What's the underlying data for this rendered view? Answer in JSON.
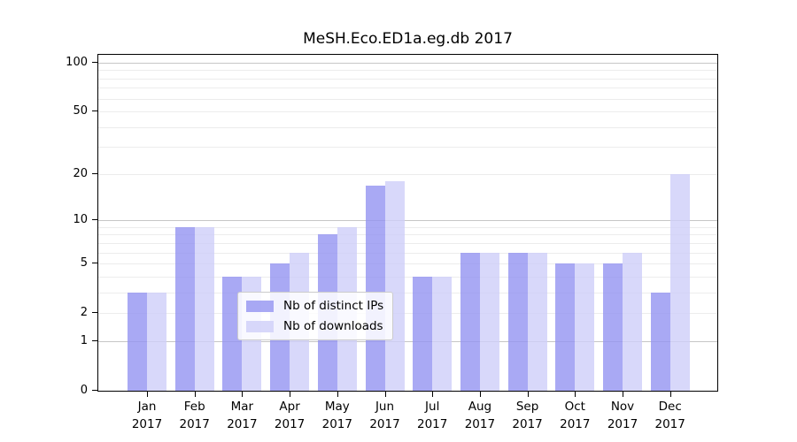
{
  "title": "MeSH.Eco.ED1a.eg.db 2017",
  "colors": {
    "ips_bar": "rgba(148,148,241,0.8)",
    "downloads_bar": "rgba(206,206,249,0.8)",
    "grid_major": "#c6c6c6",
    "grid_minor": "#ececec",
    "spine": "#000000"
  },
  "legend": {
    "items": [
      {
        "label": "Nb of distinct IPs",
        "series": "ips"
      },
      {
        "label": "Nb of downloads",
        "series": "downloads"
      }
    ]
  },
  "chart_data": {
    "type": "bar",
    "title": "MeSH.Eco.ED1a.eg.db 2017",
    "categories": [
      "Jan 2017",
      "Feb 2017",
      "Mar 2017",
      "Apr 2017",
      "May 2017",
      "Jun 2017",
      "Jul 2017",
      "Aug 2017",
      "Sep 2017",
      "Oct 2017",
      "Nov 2017",
      "Dec 2017"
    ],
    "months": [
      "Jan",
      "Feb",
      "Mar",
      "Apr",
      "May",
      "Jun",
      "Jul",
      "Aug",
      "Sep",
      "Oct",
      "Nov",
      "Dec"
    ],
    "year": "2017",
    "series": [
      {
        "name": "Nb of distinct IPs",
        "values": [
          3,
          9,
          4,
          5,
          8,
          17,
          4,
          6,
          6,
          5,
          5,
          3
        ]
      },
      {
        "name": "Nb of downloads",
        "values": [
          3,
          9,
          4,
          6,
          9,
          18,
          4,
          6,
          6,
          5,
          6,
          20
        ]
      }
    ],
    "xlabel": "",
    "ylabel": "",
    "yscale": "log1p",
    "ylim": [
      0,
      112
    ],
    "y_tick_values": [
      0,
      1,
      2,
      5,
      10,
      20,
      50,
      100
    ],
    "y_tick_labels": [
      "0",
      "1",
      "2",
      "5",
      "10",
      "20",
      "50",
      "100"
    ],
    "gridlines_major": [
      1,
      10,
      100
    ],
    "gridlines_minor": [
      2,
      3,
      4,
      5,
      6,
      7,
      8,
      9,
      20,
      30,
      40,
      50,
      60,
      70,
      80,
      90
    ],
    "grid": true,
    "legend_position": "lower center"
  }
}
